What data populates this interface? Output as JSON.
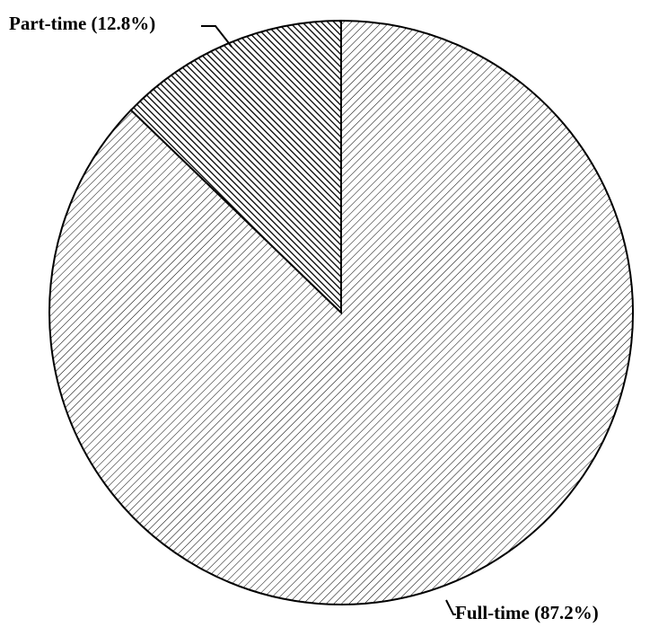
{
  "chart_data": {
    "type": "pie",
    "categories": [
      "Full-time",
      "Part-time"
    ],
    "values": [
      87.2,
      12.8
    ],
    "value_labels": [
      "(87.2%)",
      "(12.8%)"
    ]
  }
}
